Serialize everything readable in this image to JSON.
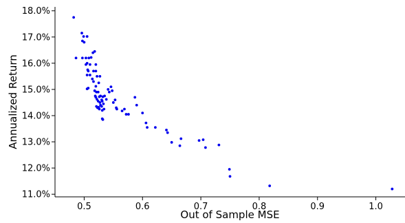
{
  "chart_data": {
    "type": "scatter",
    "title": "",
    "xlabel": "Out of Sample MSE",
    "ylabel": "Annualized Return",
    "xlim": [
      0.45,
      1.05
    ],
    "ylim": [
      10.9,
      18.15
    ],
    "x_ticks": [
      0.5,
      0.6,
      0.7,
      0.8,
      0.9,
      1.0
    ],
    "x_tick_labels": [
      "0.5",
      "0.6",
      "0.7",
      "0.8",
      "0.9",
      "1.0"
    ],
    "y_ticks": [
      11,
      12,
      13,
      14,
      15,
      16,
      17,
      18
    ],
    "y_tick_labels": [
      "11.0%",
      "12.0%",
      "13.0%",
      "14.0%",
      "15.0%",
      "16.0%",
      "17.0%",
      "18.0%"
    ],
    "grid": false,
    "legend": "none",
    "colors": {
      "points": "#0000ee",
      "axes": "#000000"
    },
    "series": [
      {
        "points": [
          [
            0.482,
            17.75
          ],
          [
            0.486,
            16.2
          ],
          [
            0.496,
            17.15
          ],
          [
            0.497,
            16.85
          ],
          [
            0.499,
            17.02
          ],
          [
            0.5,
            16.8
          ],
          [
            0.505,
            17.02
          ],
          [
            0.497,
            16.2
          ],
          [
            0.503,
            16.2
          ],
          [
            0.505,
            16.0
          ],
          [
            0.508,
            16.2
          ],
          [
            0.512,
            16.22
          ],
          [
            0.503,
            15.95
          ],
          [
            0.51,
            15.95
          ],
          [
            0.506,
            15.75
          ],
          [
            0.51,
            15.55
          ],
          [
            0.516,
            15.7
          ],
          [
            0.505,
            15.55
          ],
          [
            0.507,
            15.7
          ],
          [
            0.514,
            15.4
          ],
          [
            0.52,
            15.7
          ],
          [
            0.522,
            15.5
          ],
          [
            0.515,
            16.4
          ],
          [
            0.518,
            16.45
          ],
          [
            0.52,
            15.95
          ],
          [
            0.527,
            15.5
          ],
          [
            0.505,
            15.02
          ],
          [
            0.507,
            15.05
          ],
          [
            0.516,
            15.3
          ],
          [
            0.52,
            15.12
          ],
          [
            0.525,
            15.25
          ],
          [
            0.518,
            14.95
          ],
          [
            0.521,
            14.9
          ],
          [
            0.524,
            14.9
          ],
          [
            0.519,
            14.75
          ],
          [
            0.52,
            14.7
          ],
          [
            0.522,
            14.62
          ],
          [
            0.524,
            14.55
          ],
          [
            0.526,
            14.72
          ],
          [
            0.527,
            14.5
          ],
          [
            0.528,
            14.75
          ],
          [
            0.53,
            14.6
          ],
          [
            0.531,
            14.55
          ],
          [
            0.532,
            14.72
          ],
          [
            0.533,
            14.45
          ],
          [
            0.535,
            14.75
          ],
          [
            0.521,
            14.35
          ],
          [
            0.523,
            14.3
          ],
          [
            0.525,
            14.32
          ],
          [
            0.526,
            14.25
          ],
          [
            0.528,
            14.4
          ],
          [
            0.53,
            14.35
          ],
          [
            0.531,
            14.2
          ],
          [
            0.534,
            14.25
          ],
          [
            0.531,
            13.88
          ],
          [
            0.532,
            13.85
          ],
          [
            0.538,
            14.62
          ],
          [
            0.541,
            15.0
          ],
          [
            0.543,
            14.9
          ],
          [
            0.546,
            15.1
          ],
          [
            0.548,
            14.95
          ],
          [
            0.55,
            14.5
          ],
          [
            0.553,
            14.6
          ],
          [
            0.555,
            14.3
          ],
          [
            0.556,
            14.25
          ],
          [
            0.565,
            14.18
          ],
          [
            0.569,
            14.25
          ],
          [
            0.572,
            14.05
          ],
          [
            0.576,
            14.05
          ],
          [
            0.587,
            14.7
          ],
          [
            0.59,
            14.4
          ],
          [
            0.6,
            14.1
          ],
          [
            0.606,
            13.72
          ],
          [
            0.608,
            13.55
          ],
          [
            0.622,
            13.55
          ],
          [
            0.641,
            13.45
          ],
          [
            0.643,
            13.35
          ],
          [
            0.65,
            12.98
          ],
          [
            0.664,
            12.85
          ],
          [
            0.666,
            13.12
          ],
          [
            0.697,
            13.05
          ],
          [
            0.704,
            13.08
          ],
          [
            0.708,
            12.78
          ],
          [
            0.731,
            12.88
          ],
          [
            0.749,
            11.95
          ],
          [
            0.75,
            11.68
          ],
          [
            0.818,
            11.32
          ],
          [
            1.028,
            11.2
          ]
        ]
      }
    ]
  }
}
